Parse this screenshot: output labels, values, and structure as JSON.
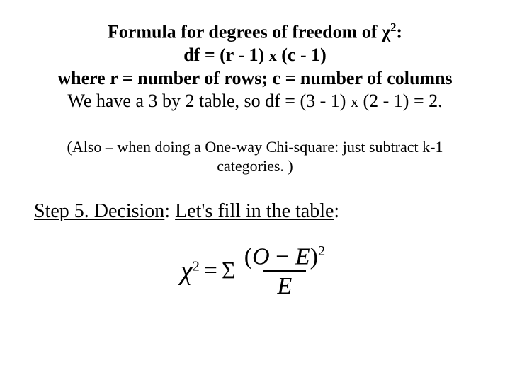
{
  "colors": {
    "background": "#ffffff",
    "text": "#000000"
  },
  "block1": {
    "l1a": "Formula for degrees of freedom of ",
    "l1chi": "χ",
    "l1sup": "2",
    "l1b": ":",
    "l2a": "df = (r - 1) ",
    "l2x": "x",
    "l2b": " (c - 1)",
    "l3": "where r = number of rows; c = number of columns",
    "l4a": "We have a 3 by 2 table, so df = (3 - 1) ",
    "l4x": "x",
    "l4b": " (2 - 1) =  2."
  },
  "block2": {
    "l1": "(Also – when doing a One-way Chi-square: just subtract k-1",
    "l2": "categories. )"
  },
  "block3": {
    "u1": "Step 5. Decision",
    "mid": ": ",
    "u2": "Let's fill in the table",
    "tail": ":"
  },
  "formula": {
    "chi": "χ",
    "sq": "2",
    "eq": "=",
    "sigma": "Σ",
    "num_open": "(",
    "num_o": "O",
    "num_minus": " − ",
    "num_e": "E",
    "num_close": ")",
    "num_exp": "2",
    "den": "E"
  }
}
